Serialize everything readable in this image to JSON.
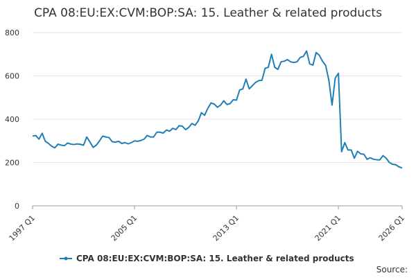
{
  "chart_data": {
    "type": "line",
    "title": "CPA 08:EU:EX:CVM:BOP:SA: 15. Leather & related products",
    "categories": [
      "1997 Q1",
      null,
      null,
      null,
      null,
      null,
      null,
      null,
      null,
      null,
      null,
      null,
      null,
      null,
      null,
      null,
      null,
      null,
      null,
      null,
      null,
      null,
      null,
      null,
      null,
      null,
      null,
      null,
      null,
      null,
      null,
      null,
      "2005 Q1",
      null,
      null,
      null,
      null,
      null,
      null,
      null,
      null,
      null,
      null,
      null,
      null,
      null,
      null,
      null,
      null,
      null,
      null,
      null,
      null,
      null,
      null,
      null,
      null,
      null,
      null,
      null,
      null,
      null,
      null,
      null,
      "2013 Q1",
      null,
      null,
      null,
      null,
      null,
      null,
      null,
      null,
      null,
      null,
      null,
      null,
      null,
      null,
      null,
      null,
      null,
      null,
      null,
      null,
      null,
      null,
      null,
      null,
      null,
      null,
      null,
      null,
      null,
      null,
      null,
      "2021 Q1",
      null,
      null,
      null,
      null,
      null,
      null,
      null,
      null,
      null,
      null,
      null,
      null,
      null,
      null,
      null,
      null,
      null,
      null,
      null,
      "2026 Q1"
    ],
    "series": [
      {
        "name": "CPA 08:EU:EX:CVM:BOP:SA: 15. Leather & related products",
        "color": "#1f7fb5",
        "values": [
          322,
          325,
          308,
          335,
          298,
          288,
          275,
          268,
          285,
          280,
          278,
          290,
          285,
          283,
          286,
          284,
          280,
          318,
          295,
          270,
          280,
          300,
          322,
          318,
          315,
          296,
          294,
          298,
          288,
          292,
          286,
          292,
          300,
          298,
          302,
          308,
          325,
          318,
          318,
          340,
          340,
          336,
          350,
          345,
          358,
          352,
          370,
          368,
          352,
          362,
          380,
          372,
          392,
          430,
          418,
          450,
          475,
          470,
          455,
          465,
          485,
          468,
          472,
          490,
          488,
          535,
          540,
          585,
          540,
          555,
          570,
          578,
          580,
          635,
          640,
          700,
          640,
          630,
          665,
          668,
          675,
          665,
          662,
          665,
          685,
          690,
          715,
          655,
          650,
          708,
          695,
          668,
          648,
          580,
          465,
          590,
          612,
          250,
          292,
          258,
          258,
          220,
          252,
          240,
          238,
          215,
          222,
          215,
          213,
          212,
          232,
          220,
          200,
          192,
          190,
          180,
          175
        ]
      }
    ],
    "ylim": [
      0,
      800
    ],
    "yticks": [
      0,
      200,
      400,
      600,
      800
    ],
    "grid": true,
    "source": "Source:"
  }
}
